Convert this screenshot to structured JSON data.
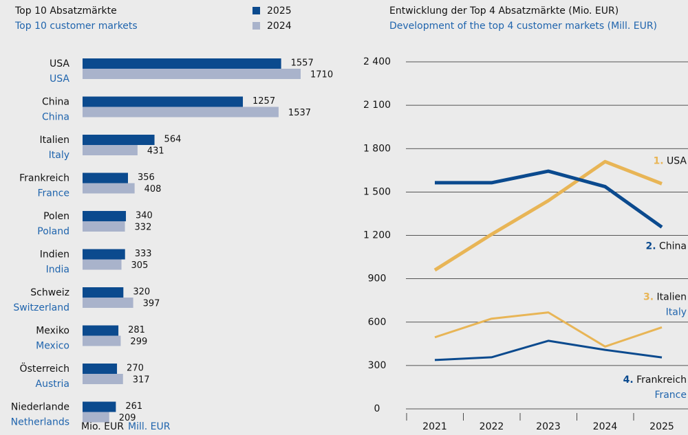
{
  "chart_data": [
    {
      "type": "bar",
      "orientation": "horizontal",
      "title": "Top 10 Absatzmärkte",
      "title_en": "Top 10 customer markets",
      "categories": [
        "USA",
        "China",
        "Italien",
        "Frankreich",
        "Polen",
        "Indien",
        "Schweiz",
        "Mexiko",
        "Österreich",
        "Niederlande"
      ],
      "categories_en": [
        "USA",
        "China",
        "Italy",
        "France",
        "Poland",
        "India",
        "Switzerland",
        "Mexico",
        "Austria",
        "Netherlands"
      ],
      "series": [
        {
          "name": "2025",
          "color": "#0b4a8e",
          "values": [
            1557,
            1257,
            564,
            356,
            340,
            333,
            320,
            281,
            270,
            261
          ]
        },
        {
          "name": "2024",
          "color": "#a9b3cb",
          "values": [
            1710,
            1537,
            431,
            408,
            332,
            305,
            397,
            299,
            317,
            209
          ]
        }
      ],
      "unit": "Mio. EUR",
      "unit_en": "Mill. EUR"
    },
    {
      "type": "line",
      "title": "Entwicklung der Top 4 Absatzmärkte (Mio. EUR)",
      "title_en": "Development of the top 4 customer markets (Mill. EUR)",
      "categories": [
        "2021",
        "2022",
        "2023",
        "2024",
        "2025"
      ],
      "series": [
        {
          "rank": "1.",
          "name": "USA",
          "color": "#e8b556",
          "line_style": "bold",
          "values": [
            960,
            1207,
            1440,
            1710,
            1557
          ]
        },
        {
          "rank": "2.",
          "name": "China",
          "color": "#0b4a8e",
          "line_style": "bold",
          "values": [
            1564,
            1564,
            1644,
            1537,
            1257
          ]
        },
        {
          "rank": "3.",
          "name": "Italien",
          "name_en": "Italy",
          "color": "#e8b556",
          "line_style": "thin",
          "values": [
            495,
            624,
            667,
            431,
            564
          ]
        },
        {
          "rank": "4.",
          "name": "Frankreich",
          "name_en": "France",
          "color": "#0b4a8e",
          "line_style": "thin",
          "values": [
            338,
            357,
            471,
            408,
            356
          ]
        }
      ],
      "ylim": [
        0,
        2400
      ],
      "yticks": [
        0,
        300,
        600,
        900,
        {
          "value": 1200,
          "label": "1 200"
        },
        {
          "value": 1500,
          "label": "1 500"
        },
        {
          "value": 1800,
          "label": "1 800"
        },
        {
          "value": 2100,
          "label": "2 100"
        },
        {
          "value": 2400,
          "label": "2 400"
        }
      ],
      "grid": true
    }
  ]
}
